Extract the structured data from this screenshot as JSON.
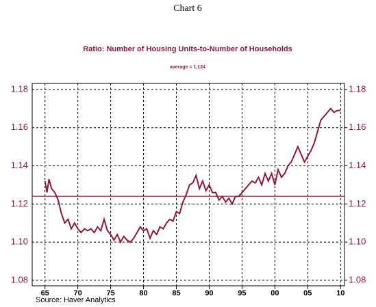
{
  "chart_data": {
    "type": "line",
    "title": "Chart 6",
    "subtitle": "Ratio: Number of Housing Units-to-Number of Households",
    "annotation": "average = 1.124",
    "source": "Source: Haver Analytics",
    "average": 1.124,
    "grid": true,
    "xlim": [
      1963.05,
      2010.6
    ],
    "xticks": [
      {
        "value": 1965,
        "label": "65"
      },
      {
        "value": 1970,
        "label": "70"
      },
      {
        "value": 1975,
        "label": "75"
      },
      {
        "value": 1980,
        "label": "80"
      },
      {
        "value": 1985,
        "label": "85"
      },
      {
        "value": 1990,
        "label": "90"
      },
      {
        "value": 1995,
        "label": "95"
      },
      {
        "value": 2000,
        "label": "00"
      },
      {
        "value": 2005,
        "label": "05"
      },
      {
        "value": 2010,
        "label": "10"
      }
    ],
    "ylim": [
      1.0771,
      1.1832
    ],
    "yticks": [
      1.08,
      {
        "value": 1.1,
        "label": "1.10"
      },
      1.12,
      1.14,
      1.16,
      1.18
    ],
    "y2lim": [
      1.0771,
      1.1832
    ],
    "y2ticks": [
      1.08,
      {
        "value": 1.1,
        "label": "1.10"
      },
      1.12,
      1.14,
      1.16,
      1.18
    ],
    "x": [
      1965,
      1965.3,
      1965.6,
      1966,
      1966.5,
      1967,
      1967.5,
      1968,
      1968.5,
      1969,
      1969.5,
      1970,
      1970.5,
      1971,
      1971.5,
      1972,
      1972.5,
      1973,
      1973.5,
      1974,
      1974.5,
      1975,
      1975.5,
      1976,
      1976.5,
      1977,
      1977.5,
      1978,
      1978.5,
      1979,
      1979.5,
      1980,
      1980.5,
      1981,
      1981.5,
      1982,
      1982.5,
      1983,
      1983.5,
      1984,
      1984.5,
      1985,
      1985.5,
      1986,
      1986.5,
      1987,
      1987.5,
      1988,
      1988.5,
      1989,
      1989.5,
      1990,
      1990.5,
      1991,
      1991.5,
      1992,
      1992.5,
      1993,
      1993.5,
      1994,
      1994.5,
      1995,
      1995.5,
      1996,
      1996.5,
      1997,
      1997.5,
      1998,
      1998.5,
      1999,
      1999.5,
      2000,
      2000.5,
      2001,
      2001.5,
      2002,
      2002.5,
      2003,
      2003.5,
      2004,
      2004.5,
      2005,
      2005.5,
      2006,
      2006.5,
      2007,
      2007.5,
      2008,
      2008.5,
      2009,
      2009.5,
      2010
    ],
    "series": [
      {
        "color": "#8b1a3a",
        "values": [
          1.132,
          1.126,
          1.133,
          1.128,
          1.126,
          1.122,
          1.115,
          1.11,
          1.112,
          1.107,
          1.11,
          1.107,
          1.105,
          1.107,
          1.106,
          1.107,
          1.105,
          1.108,
          1.106,
          1.112,
          1.106,
          1.104,
          1.101,
          1.104,
          1.1,
          1.103,
          1.101,
          1.1,
          1.102,
          1.105,
          1.108,
          1.106,
          1.107,
          1.102,
          1.106,
          1.104,
          1.108,
          1.107,
          1.11,
          1.112,
          1.111,
          1.116,
          1.115,
          1.121,
          1.125,
          1.13,
          1.131,
          1.135,
          1.128,
          1.132,
          1.127,
          1.13,
          1.126,
          1.126,
          1.122,
          1.124,
          1.121,
          1.123,
          1.12,
          1.124,
          1.124,
          1.126,
          1.128,
          1.13,
          1.132,
          1.131,
          1.134,
          1.13,
          1.136,
          1.132,
          1.136,
          1.13,
          1.138,
          1.134,
          1.136,
          1.14,
          1.142,
          1.146,
          1.15,
          1.146,
          1.142,
          1.145,
          1.148,
          1.152,
          1.158,
          1.164,
          1.166,
          1.168,
          1.17,
          1.168,
          1.169,
          1.169
        ]
      }
    ]
  }
}
